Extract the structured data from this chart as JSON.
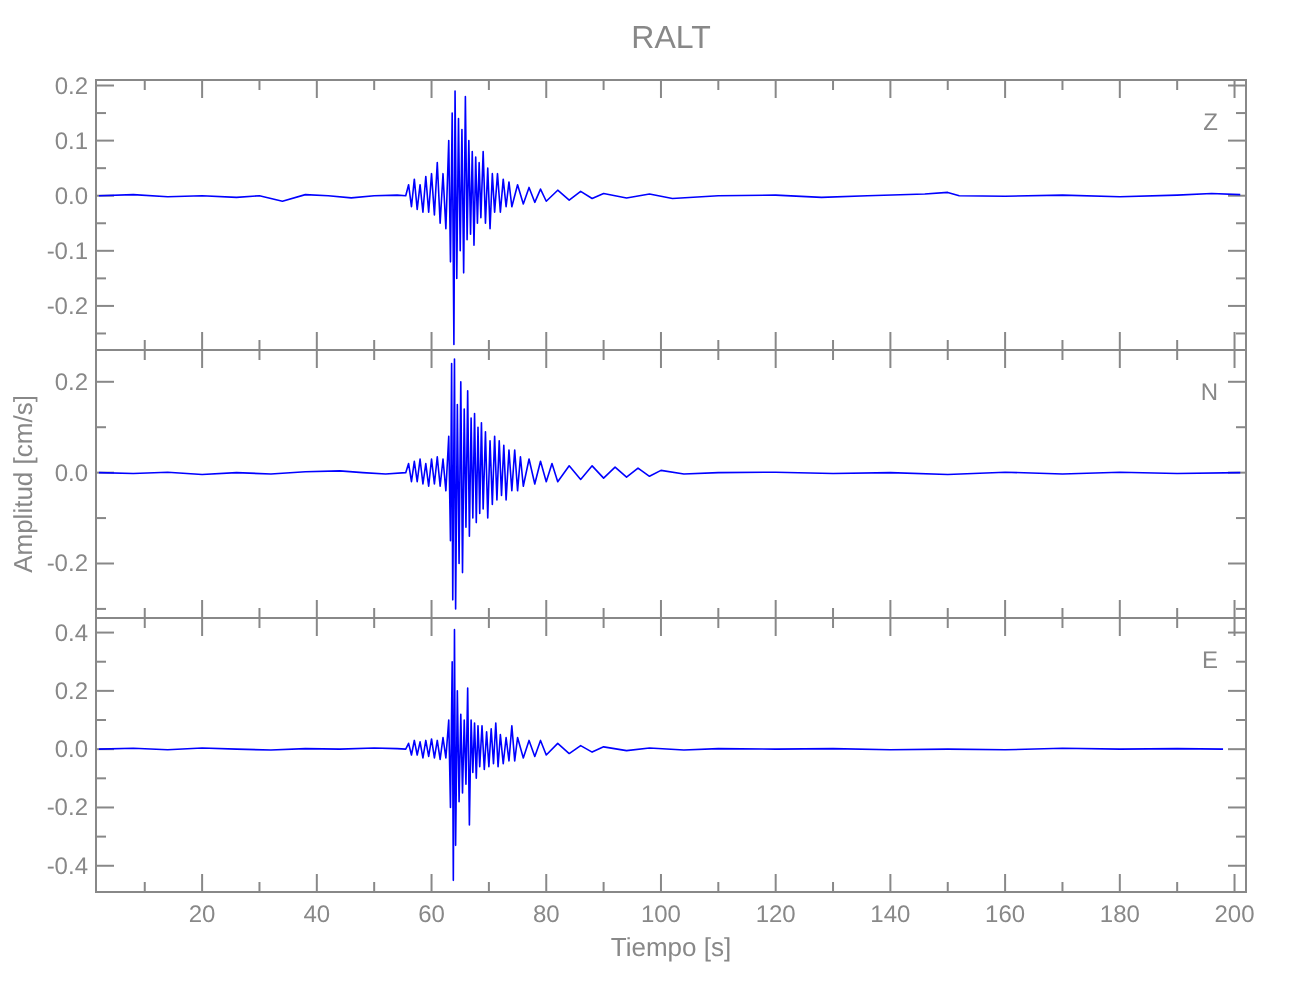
{
  "chart_data": [
    {
      "type": "line",
      "title": "RALT",
      "annotations": [
        "Z"
      ],
      "tick_labels": "y",
      "xlim": [
        1.5,
        202
      ],
      "xticks": [
        {
          "value": 10,
          "label": null
        },
        20,
        {
          "value": 30,
          "label": null
        },
        40,
        {
          "value": 50,
          "label": null
        },
        60,
        {
          "value": 70,
          "label": null
        },
        80,
        {
          "value": 90,
          "label": null
        },
        100,
        {
          "value": 110,
          "label": null
        },
        120,
        {
          "value": 130,
          "label": null
        },
        140,
        {
          "value": 150,
          "label": null
        },
        160,
        {
          "value": 170,
          "label": null
        },
        180,
        {
          "value": 190,
          "label": null
        },
        200
      ],
      "ylim": [
        -0.28,
        0.21
      ],
      "yticks": [
        {
          "value": -0.25,
          "label": null
        },
        -0.2,
        {
          "value": -0.15,
          "label": null
        },
        -0.1,
        {
          "value": -0.05,
          "label": null
        },
        {
          "value": 0,
          "label": "0.0"
        },
        {
          "value": 0.05,
          "label": null
        },
        0.1,
        {
          "value": 0.15,
          "label": null
        },
        0.2
      ],
      "series": [
        {
          "color": "#0000ff",
          "x": [
            2,
            8,
            14,
            20,
            26,
            30,
            34,
            38,
            42,
            46,
            50,
            54,
            55.5,
            56,
            56.5,
            57,
            57.5,
            58,
            58.5,
            59,
            59.5,
            60,
            60.5,
            61,
            61.5,
            62,
            62.5,
            63,
            63.3,
            63.6,
            63.9,
            64.1,
            64.4,
            64.7,
            65,
            65.3,
            65.6,
            65.9,
            66.2,
            66.5,
            66.8,
            67.1,
            67.4,
            67.7,
            68,
            68.3,
            68.6,
            69,
            69.4,
            69.8,
            70.2,
            70.6,
            71,
            71.5,
            72,
            72.5,
            73,
            73.5,
            74,
            75,
            76,
            77,
            78,
            79,
            80,
            82,
            84,
            86,
            88,
            90,
            94,
            98,
            102,
            110,
            120,
            128,
            136,
            146,
            150,
            152,
            160,
            170,
            180,
            190,
            196,
            201
          ],
          "values": [
            0,
            0.002,
            -0.002,
            0,
            -0.003,
            0,
            -0.01,
            0.002,
            0,
            -0.004,
            0,
            0.001,
            0,
            0.02,
            -0.02,
            0.03,
            -0.025,
            0.02,
            -0.03,
            0.035,
            -0.03,
            0.04,
            -0.035,
            0.06,
            -0.05,
            0.04,
            -0.06,
            0.1,
            -0.12,
            0.15,
            -0.27,
            0.19,
            -0.15,
            0.14,
            -0.1,
            0.12,
            -0.14,
            0.18,
            -0.08,
            0.1,
            -0.07,
            0.08,
            -0.09,
            0.07,
            -0.05,
            0.06,
            -0.04,
            0.08,
            -0.05,
            0.05,
            -0.06,
            0.04,
            -0.03,
            0.04,
            -0.03,
            0.03,
            -0.02,
            0.025,
            -0.02,
            0.02,
            -0.015,
            0.015,
            -0.012,
            0.012,
            -0.01,
            0.01,
            -0.008,
            0.008,
            -0.005,
            0.004,
            -0.004,
            0.003,
            -0.005,
            0,
            0.001,
            -0.003,
            0,
            0.003,
            0.006,
            0,
            -0.001,
            0.001,
            -0.002,
            0.001,
            0.004,
            0.002
          ]
        }
      ]
    },
    {
      "type": "line",
      "ylabel": "Amplitud [cm/s]",
      "annotations": [
        "N"
      ],
      "tick_labels": "y",
      "xlim": [
        1.5,
        202
      ],
      "xticks": [
        {
          "value": 10,
          "label": null
        },
        20,
        {
          "value": 30,
          "label": null
        },
        40,
        {
          "value": 50,
          "label": null
        },
        60,
        {
          "value": 70,
          "label": null
        },
        80,
        {
          "value": 90,
          "label": null
        },
        100,
        {
          "value": 110,
          "label": null
        },
        120,
        {
          "value": 130,
          "label": null
        },
        140,
        {
          "value": 150,
          "label": null
        },
        160,
        {
          "value": 170,
          "label": null
        },
        180,
        {
          "value": 190,
          "label": null
        },
        200
      ],
      "ylim": [
        -0.32,
        0.27
      ],
      "yticks": [
        {
          "value": -0.3,
          "label": null
        },
        -0.2,
        {
          "value": -0.1,
          "label": null
        },
        {
          "value": 0,
          "label": "0.0"
        },
        {
          "value": 0.1,
          "label": null
        },
        0.2
      ],
      "series": [
        {
          "color": "#0000ff",
          "x": [
            2,
            8,
            14,
            20,
            26,
            32,
            38,
            44,
            48,
            52,
            55.5,
            56,
            56.5,
            57,
            57.5,
            58,
            58.5,
            59,
            59.5,
            60,
            60.5,
            61,
            61.5,
            62,
            62.5,
            63,
            63.3,
            63.5,
            63.7,
            64,
            64.2,
            64.5,
            64.8,
            65.1,
            65.4,
            65.7,
            66,
            66.3,
            66.6,
            66.9,
            67.2,
            67.5,
            67.8,
            68.1,
            68.4,
            68.7,
            69,
            69.4,
            69.8,
            70.2,
            70.6,
            71,
            71.4,
            71.8,
            72.2,
            72.6,
            73,
            73.5,
            74,
            74.5,
            75,
            75.5,
            76,
            77,
            78,
            79,
            80,
            81,
            82,
            84,
            86,
            88,
            90,
            92,
            94,
            96,
            98,
            100,
            104,
            110,
            120,
            130,
            140,
            150,
            160,
            170,
            180,
            190,
            201
          ],
          "values": [
            0,
            -0.002,
            0.001,
            -0.004,
            0,
            -0.003,
            0.002,
            0.004,
            0,
            -0.003,
            0,
            0.02,
            -0.02,
            0.025,
            -0.02,
            0.03,
            -0.025,
            0.02,
            -0.03,
            0.03,
            -0.025,
            0.035,
            -0.03,
            0.03,
            -0.04,
            0.08,
            -0.15,
            0.24,
            -0.28,
            0.25,
            -0.3,
            0.15,
            -0.2,
            0.2,
            -0.22,
            0.14,
            -0.12,
            0.18,
            -0.14,
            0.12,
            -0.1,
            0.13,
            -0.11,
            0.1,
            -0.09,
            0.11,
            -0.08,
            0.09,
            -0.1,
            0.07,
            -0.07,
            0.08,
            -0.06,
            0.07,
            -0.05,
            0.06,
            -0.06,
            0.05,
            -0.04,
            0.05,
            -0.04,
            0.035,
            -0.03,
            0.03,
            -0.025,
            0.025,
            -0.02,
            0.02,
            -0.02,
            0.015,
            -0.015,
            0.015,
            -0.012,
            0.012,
            -0.01,
            0.01,
            -0.008,
            0.005,
            -0.003,
            0,
            0.001,
            -0.002,
            0,
            -0.004,
            0.001,
            -0.003,
            0.001,
            -0.002,
            0
          ]
        }
      ]
    },
    {
      "type": "line",
      "xlabel": "Tiempo [s]",
      "annotations": [
        "E"
      ],
      "xlim": [
        1.5,
        202
      ],
      "xticks": [
        {
          "value": 10,
          "label": null
        },
        20,
        {
          "value": 30,
          "label": null
        },
        40,
        {
          "value": 50,
          "label": null
        },
        60,
        {
          "value": 70,
          "label": null
        },
        80,
        {
          "value": 90,
          "label": null
        },
        100,
        {
          "value": 110,
          "label": null
        },
        120,
        {
          "value": 130,
          "label": null
        },
        140,
        {
          "value": 150,
          "label": null
        },
        160,
        {
          "value": 170,
          "label": null
        },
        180,
        {
          "value": 190,
          "label": null
        },
        200
      ],
      "ylim": [
        -0.49,
        0.45
      ],
      "yticks": [
        -0.4,
        {
          "value": -0.3,
          "label": null
        },
        -0.2,
        {
          "value": -0.1,
          "label": null
        },
        {
          "value": 0,
          "label": "0.0"
        },
        {
          "value": 0.1,
          "label": null
        },
        0.2,
        {
          "value": 0.3,
          "label": null
        },
        0.4
      ],
      "series": [
        {
          "color": "#0000ff",
          "x": [
            2,
            8,
            14,
            20,
            26,
            32,
            38,
            44,
            50,
            54,
            55.5,
            56,
            56.5,
            57,
            57.5,
            58,
            58.5,
            59,
            59.5,
            60,
            60.5,
            61,
            61.5,
            62,
            62.5,
            63,
            63.3,
            63.6,
            63.8,
            64,
            64.2,
            64.5,
            64.8,
            65.1,
            65.4,
            65.7,
            66,
            66.3,
            66.6,
            66.9,
            67.2,
            67.5,
            67.8,
            68.1,
            68.4,
            68.8,
            69.2,
            69.6,
            70,
            70.4,
            70.8,
            71.2,
            71.6,
            72,
            72.5,
            73,
            73.5,
            74,
            74.5,
            75,
            76,
            77,
            78,
            79,
            80,
            82,
            84,
            86,
            88,
            90,
            94,
            98,
            104,
            110,
            120,
            130,
            140,
            150,
            160,
            170,
            180,
            190,
            198
          ],
          "values": [
            0,
            0.003,
            -0.002,
            0.004,
            0,
            -0.003,
            0.002,
            0,
            0.004,
            0.002,
            0,
            0.02,
            -0.02,
            0.03,
            -0.02,
            0.025,
            -0.03,
            0.03,
            -0.025,
            0.035,
            -0.03,
            0.03,
            -0.035,
            0.04,
            -0.03,
            0.1,
            -0.2,
            0.3,
            -0.45,
            0.41,
            -0.33,
            0.2,
            -0.18,
            0.12,
            -0.15,
            0.1,
            -0.12,
            0.21,
            -0.26,
            0.1,
            -0.08,
            0.09,
            -0.1,
            0.08,
            -0.06,
            0.08,
            -0.07,
            0.06,
            -0.06,
            0.07,
            -0.05,
            0.09,
            -0.06,
            0.05,
            -0.05,
            0.04,
            -0.04,
            0.08,
            -0.04,
            0.04,
            -0.03,
            0.03,
            -0.025,
            0.03,
            -0.02,
            0.02,
            -0.015,
            0.012,
            -0.01,
            0.008,
            -0.005,
            0.004,
            -0.003,
            0.002,
            0,
            0.002,
            -0.002,
            0,
            -0.002,
            0.003,
            0,
            0.002,
            0
          ]
        }
      ]
    }
  ]
}
